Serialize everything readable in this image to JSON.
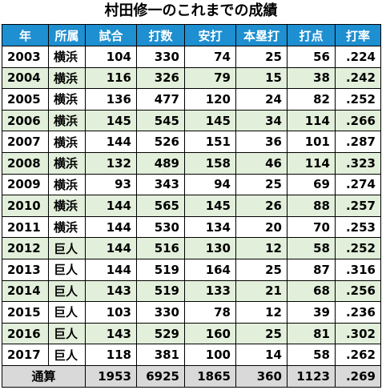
{
  "header": {
    "title": "村田修一のこれまでの成績"
  },
  "table": {
    "columns": [
      "年",
      "所属",
      "試合",
      "打数",
      "安打",
      "本塁打",
      "打点",
      "打率"
    ],
    "rows": [
      [
        "2003",
        "横浜",
        "104",
        "330",
        "74",
        "25",
        "56",
        ".224"
      ],
      [
        "2004",
        "横浜",
        "116",
        "326",
        "79",
        "15",
        "38",
        ".242"
      ],
      [
        "2005",
        "横浜",
        "136",
        "477",
        "120",
        "24",
        "82",
        ".252"
      ],
      [
        "2006",
        "横浜",
        "145",
        "545",
        "145",
        "34",
        "114",
        ".266"
      ],
      [
        "2007",
        "横浜",
        "144",
        "526",
        "151",
        "36",
        "101",
        ".287"
      ],
      [
        "2008",
        "横浜",
        "132",
        "489",
        "158",
        "46",
        "114",
        ".323"
      ],
      [
        "2009",
        "横浜",
        "93",
        "343",
        "94",
        "25",
        "69",
        ".274"
      ],
      [
        "2010",
        "横浜",
        "144",
        "565",
        "145",
        "26",
        "88",
        ".257"
      ],
      [
        "2011",
        "横浜",
        "144",
        "530",
        "134",
        "20",
        "70",
        ".253"
      ],
      [
        "2012",
        "巨人",
        "144",
        "516",
        "130",
        "12",
        "58",
        ".252"
      ],
      [
        "2013",
        "巨人",
        "144",
        "519",
        "164",
        "25",
        "87",
        ".316"
      ],
      [
        "2014",
        "巨人",
        "143",
        "519",
        "133",
        "21",
        "68",
        ".256"
      ],
      [
        "2015",
        "巨人",
        "103",
        "330",
        "78",
        "12",
        "39",
        ".236"
      ],
      [
        "2016",
        "巨人",
        "143",
        "529",
        "160",
        "25",
        "81",
        ".302"
      ],
      [
        "2017",
        "巨人",
        "118",
        "381",
        "100",
        "14",
        "58",
        ".262"
      ]
    ],
    "total": [
      "通算",
      "1953",
      "6925",
      "1865",
      "360",
      "1123",
      ".269"
    ]
  }
}
